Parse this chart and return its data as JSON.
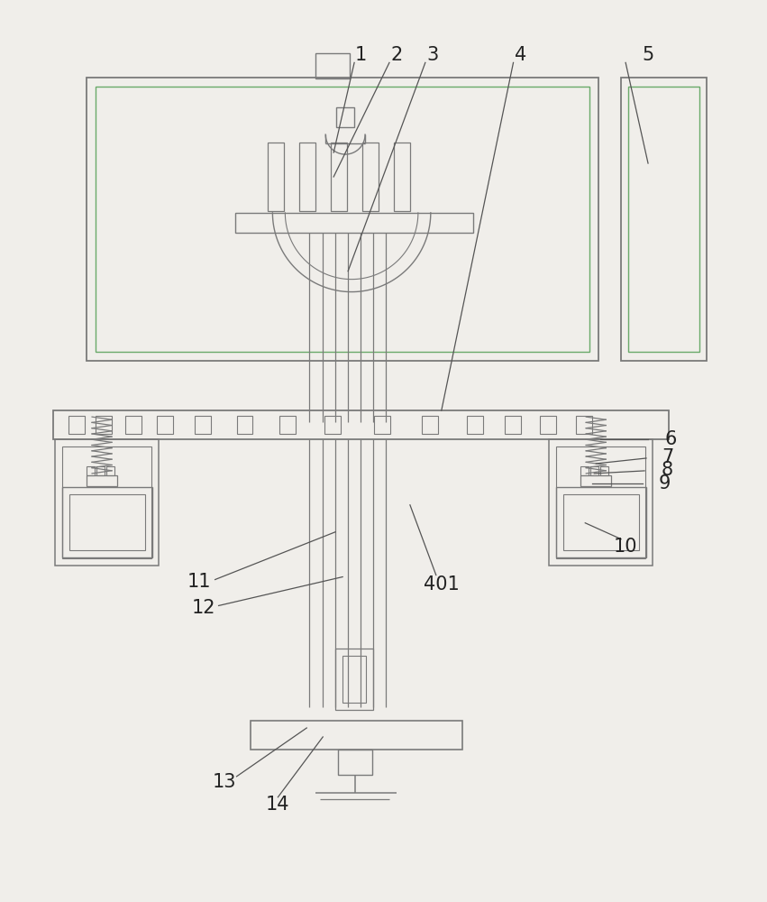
{
  "bg_color": "#f0eeea",
  "lc": "#7a7a7a",
  "lc_green": "#6aaa6a",
  "lc_dark": "#555555",
  "lc_light": "#aaaaaa",
  "label_color": "#222222",
  "label_fontsize": 15
}
